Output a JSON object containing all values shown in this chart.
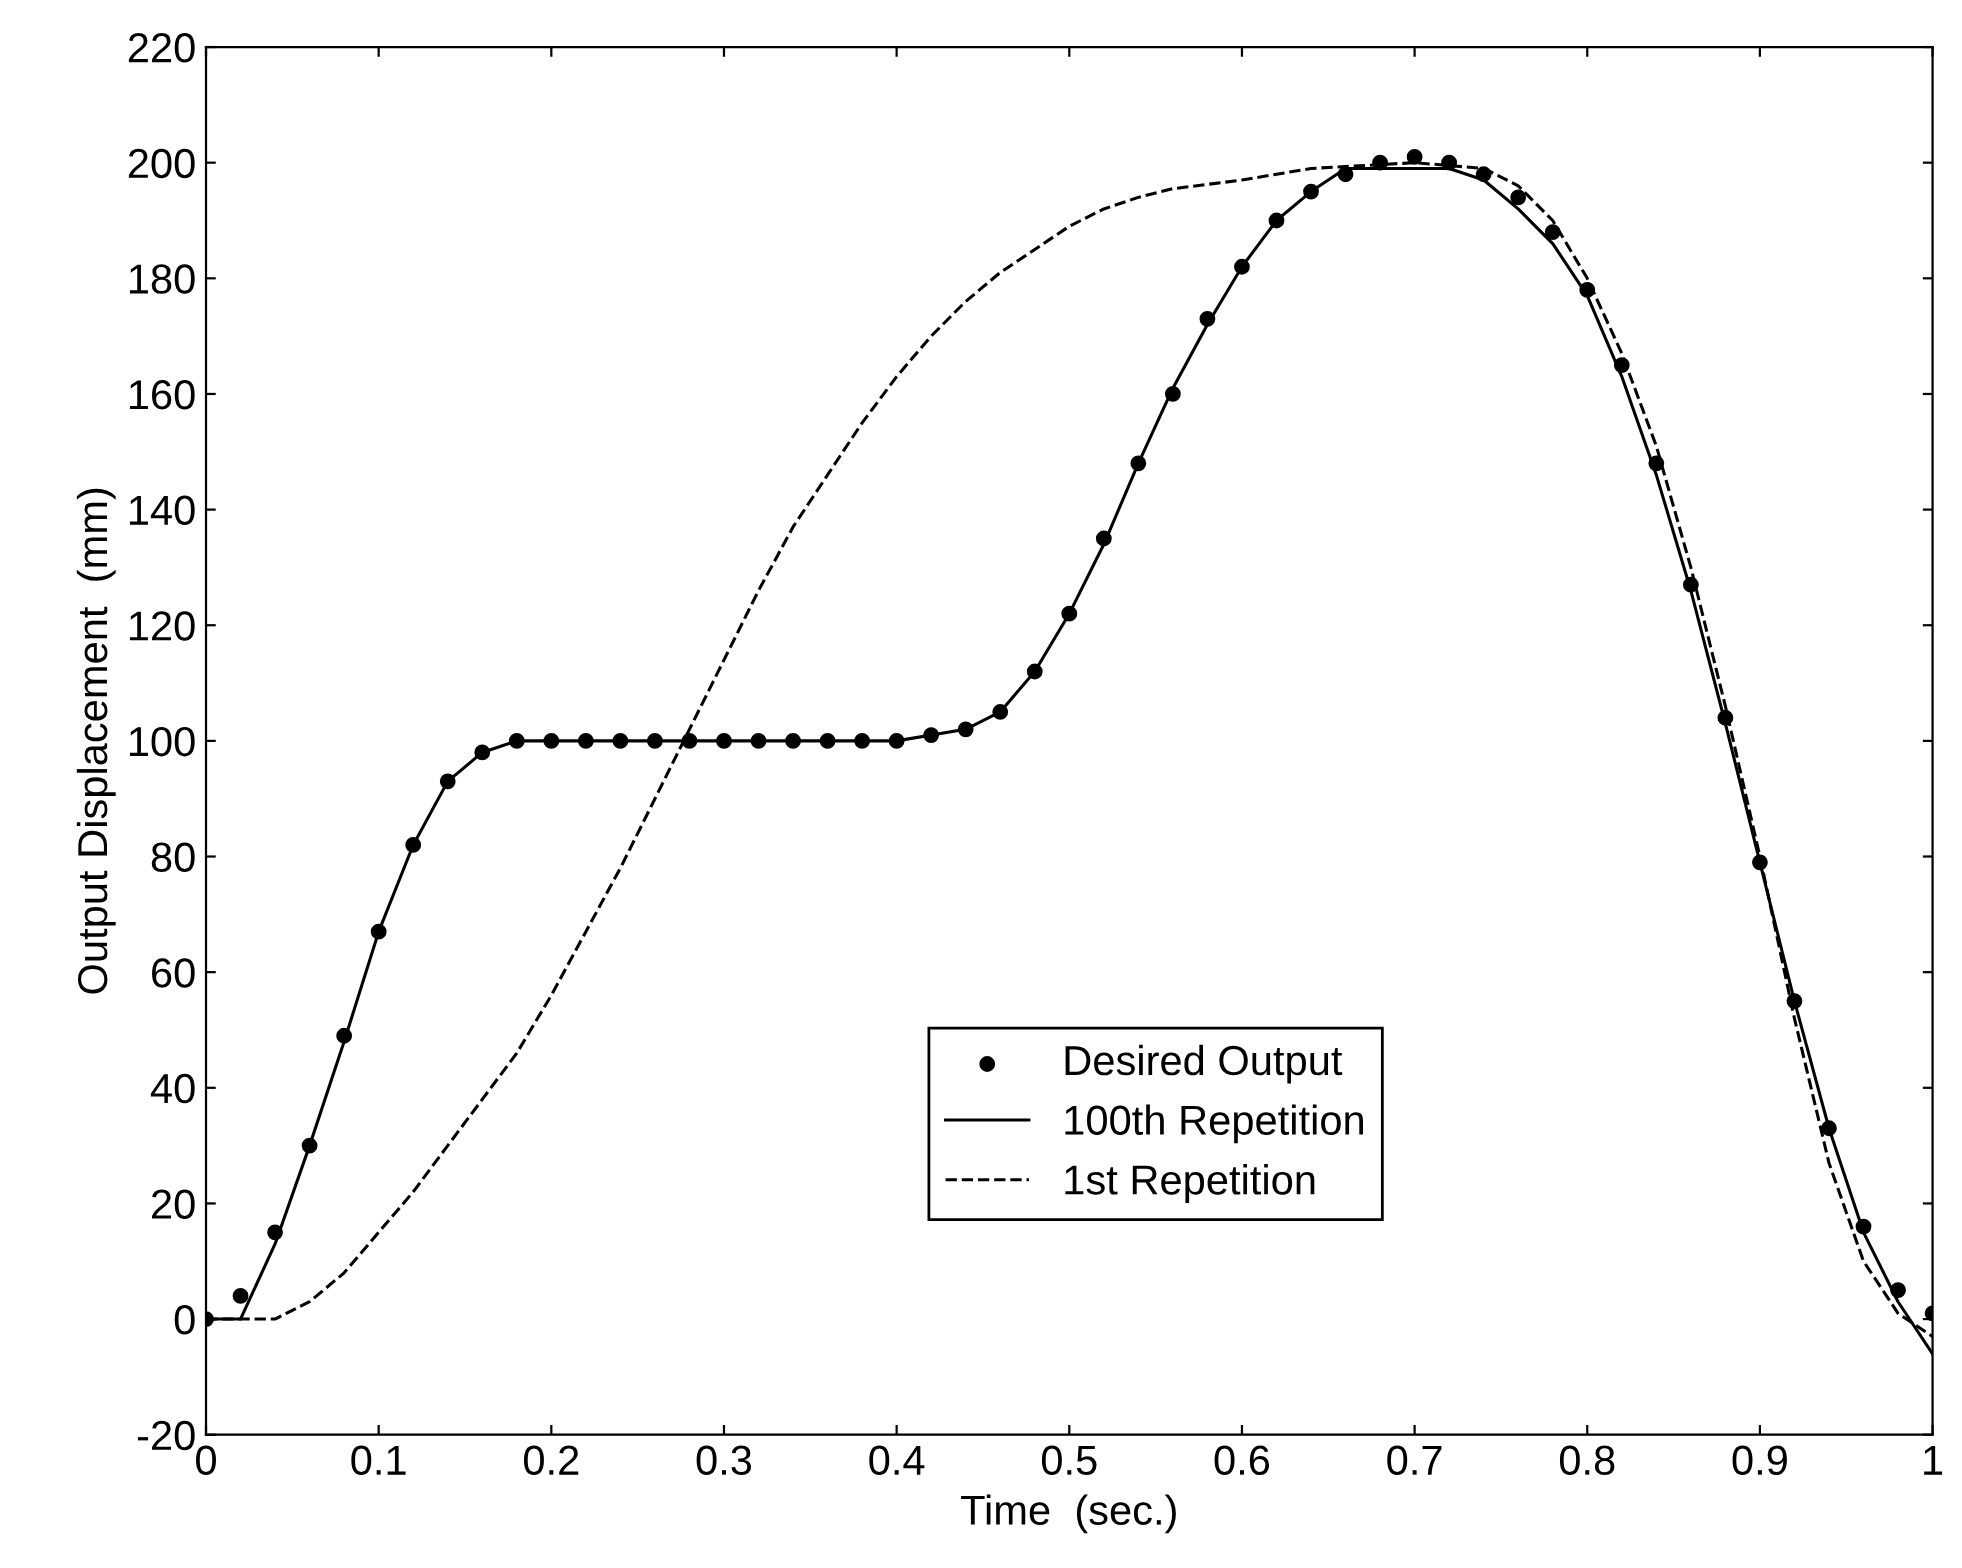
{
  "chart_data": {
    "type": "line",
    "xlabel": "Time  (sec.)",
    "ylabel": "Output Displacement  (mm)",
    "xlim": [
      0,
      1
    ],
    "ylim": [
      -20,
      220
    ],
    "xticks": [
      0,
      0.1,
      0.2,
      0.3,
      0.4,
      0.5,
      0.6,
      0.7,
      0.8,
      0.9,
      1
    ],
    "yticks": [
      -20,
      0,
      20,
      40,
      60,
      80,
      100,
      120,
      140,
      160,
      180,
      200,
      220
    ],
    "grid": false,
    "legend": "bottom",
    "series": [
      {
        "name": "Desired Output",
        "type": "scatter",
        "marker": "circle",
        "color": "#000000",
        "x": [
          0,
          0.02,
          0.04,
          0.06,
          0.08,
          0.1,
          0.12,
          0.14,
          0.16,
          0.18,
          0.2,
          0.22,
          0.24,
          0.26,
          0.28,
          0.3,
          0.32,
          0.34,
          0.36,
          0.38,
          0.4,
          0.42,
          0.44,
          0.46,
          0.48,
          0.5,
          0.52,
          0.54,
          0.56,
          0.58,
          0.6,
          0.62,
          0.64,
          0.66,
          0.68,
          0.7,
          0.72,
          0.74,
          0.76,
          0.78,
          0.8,
          0.82,
          0.84,
          0.86,
          0.88,
          0.9,
          0.92,
          0.94,
          0.96,
          0.98,
          1
        ],
        "values": [
          0,
          4,
          15,
          30,
          49,
          67,
          82,
          93,
          98,
          100,
          100,
          100,
          100,
          100,
          100,
          100,
          100,
          100,
          100,
          100,
          100,
          101,
          102,
          105,
          112,
          122,
          135,
          148,
          160,
          173,
          182,
          190,
          195,
          198,
          200,
          201,
          200,
          198,
          194,
          188,
          178,
          165,
          148,
          127,
          104,
          79,
          55,
          33,
          16,
          5,
          1
        ]
      },
      {
        "name": "100th Repetition",
        "line_style": "solid",
        "color": "#000000",
        "x": [
          0,
          0.02,
          0.04,
          0.06,
          0.08,
          0.1,
          0.12,
          0.14,
          0.16,
          0.18,
          0.2,
          0.4,
          0.44,
          0.46,
          0.48,
          0.5,
          0.52,
          0.54,
          0.56,
          0.58,
          0.6,
          0.62,
          0.64,
          0.66,
          0.7,
          0.72,
          0.74,
          0.76,
          0.78,
          0.8,
          0.82,
          0.84,
          0.86,
          0.88,
          0.9,
          0.92,
          0.94,
          0.96,
          0.98,
          1
        ],
        "values": [
          0,
          0,
          13,
          30,
          48,
          67,
          82,
          93,
          98,
          100,
          100,
          100,
          102,
          105,
          112,
          122,
          134,
          148,
          161,
          172,
          182,
          190,
          195,
          199,
          199,
          199,
          197,
          192,
          186,
          177,
          163,
          146,
          126,
          103,
          79,
          55,
          33,
          15,
          3,
          -6
        ]
      },
      {
        "name": "1st Repetition",
        "line_style": "dashed",
        "color": "#000000",
        "x": [
          0,
          0.04,
          0.06,
          0.08,
          0.1,
          0.12,
          0.14,
          0.16,
          0.18,
          0.2,
          0.22,
          0.24,
          0.26,
          0.28,
          0.3,
          0.32,
          0.34,
          0.36,
          0.38,
          0.4,
          0.42,
          0.44,
          0.46,
          0.48,
          0.5,
          0.52,
          0.54,
          0.56,
          0.6,
          0.64,
          0.7,
          0.74,
          0.76,
          0.78,
          0.8,
          0.82,
          0.84,
          0.86,
          0.88,
          0.9,
          0.92,
          0.94,
          0.96,
          0.98,
          1
        ],
        "values": [
          0,
          0,
          3,
          8,
          15,
          22,
          30,
          38,
          46,
          56,
          67,
          78,
          90,
          102,
          114,
          126,
          137,
          146,
          155,
          163,
          170,
          176,
          181,
          185,
          189,
          192,
          194,
          195.5,
          197,
          199,
          200,
          199,
          196,
          190,
          180,
          167,
          151,
          130,
          106,
          80,
          52,
          27,
          10,
          1,
          -3
        ]
      }
    ]
  }
}
